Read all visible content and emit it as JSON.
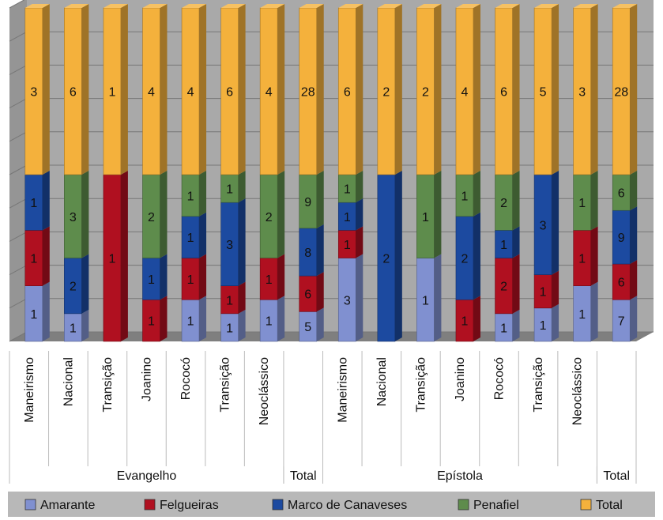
{
  "chart_data": {
    "type": "bar",
    "stacked": true,
    "percent_stacked": true,
    "grid": true,
    "legend_position": "bottom",
    "categories": [
      {
        "group": "Evangelho",
        "label": "Maneirismo"
      },
      {
        "group": "Evangelho",
        "label": "Nacional"
      },
      {
        "group": "Evangelho",
        "label": "Transição"
      },
      {
        "group": "Evangelho",
        "label": "Joanino"
      },
      {
        "group": "Evangelho",
        "label": "Rococó"
      },
      {
        "group": "Evangelho",
        "label": "Transição"
      },
      {
        "group": "Evangelho",
        "label": "Neoclássico"
      },
      {
        "group": "Total",
        "label": ""
      },
      {
        "group": "Epístola",
        "label": "Maneirismo"
      },
      {
        "group": "Epístola",
        "label": "Nacional"
      },
      {
        "group": "Epístola",
        "label": "Transição"
      },
      {
        "group": "Epístola",
        "label": "Joanino"
      },
      {
        "group": "Epístola",
        "label": "Rococó"
      },
      {
        "group": "Epístola",
        "label": "Transição"
      },
      {
        "group": "Epístola",
        "label": "Neoclássico"
      },
      {
        "group": "Total",
        "label": ""
      }
    ],
    "groups": [
      "Evangelho",
      "Total",
      "Epístola",
      "Total"
    ],
    "series": [
      {
        "name": "Amarante",
        "color": "#8090d0",
        "values": [
          1,
          1,
          0,
          0,
          1,
          1,
          1,
          5,
          3,
          0,
          1,
          0,
          1,
          1,
          1,
          7
        ]
      },
      {
        "name": "Felgueiras",
        "color": "#b01020",
        "values": [
          1,
          0,
          1,
          1,
          1,
          1,
          1,
          6,
          1,
          0,
          0,
          1,
          2,
          1,
          1,
          6
        ]
      },
      {
        "name": "Marco de Canaveses",
        "color": "#1c4aa0",
        "values": [
          1,
          2,
          0,
          1,
          1,
          3,
          0,
          8,
          1,
          2,
          0,
          2,
          1,
          3,
          0,
          9
        ]
      },
      {
        "name": "Penafiel",
        "color": "#5e8c4c",
        "values": [
          0,
          3,
          0,
          2,
          1,
          1,
          2,
          9,
          1,
          0,
          1,
          1,
          2,
          0,
          1,
          6
        ]
      },
      {
        "name": "Total",
        "color": "#f4b13c",
        "values": [
          3,
          6,
          1,
          4,
          4,
          6,
          4,
          28,
          6,
          2,
          2,
          4,
          6,
          5,
          3,
          28
        ]
      }
    ]
  },
  "legend": {
    "items": [
      {
        "name": "Amarante",
        "color": "#8090d0"
      },
      {
        "name": "Felgueiras",
        "color": "#b01020"
      },
      {
        "name": "Marco de Canaveses",
        "color": "#1c4aa0"
      },
      {
        "name": "Penafiel",
        "color": "#5e8c4c"
      },
      {
        "name": "Total",
        "color": "#f4b13c"
      }
    ]
  },
  "colors": {
    "plot_background": "#a9a9a9",
    "gridline": "#777777",
    "outer_background": "#ffffff",
    "legend_background": "#b8b8b8"
  }
}
